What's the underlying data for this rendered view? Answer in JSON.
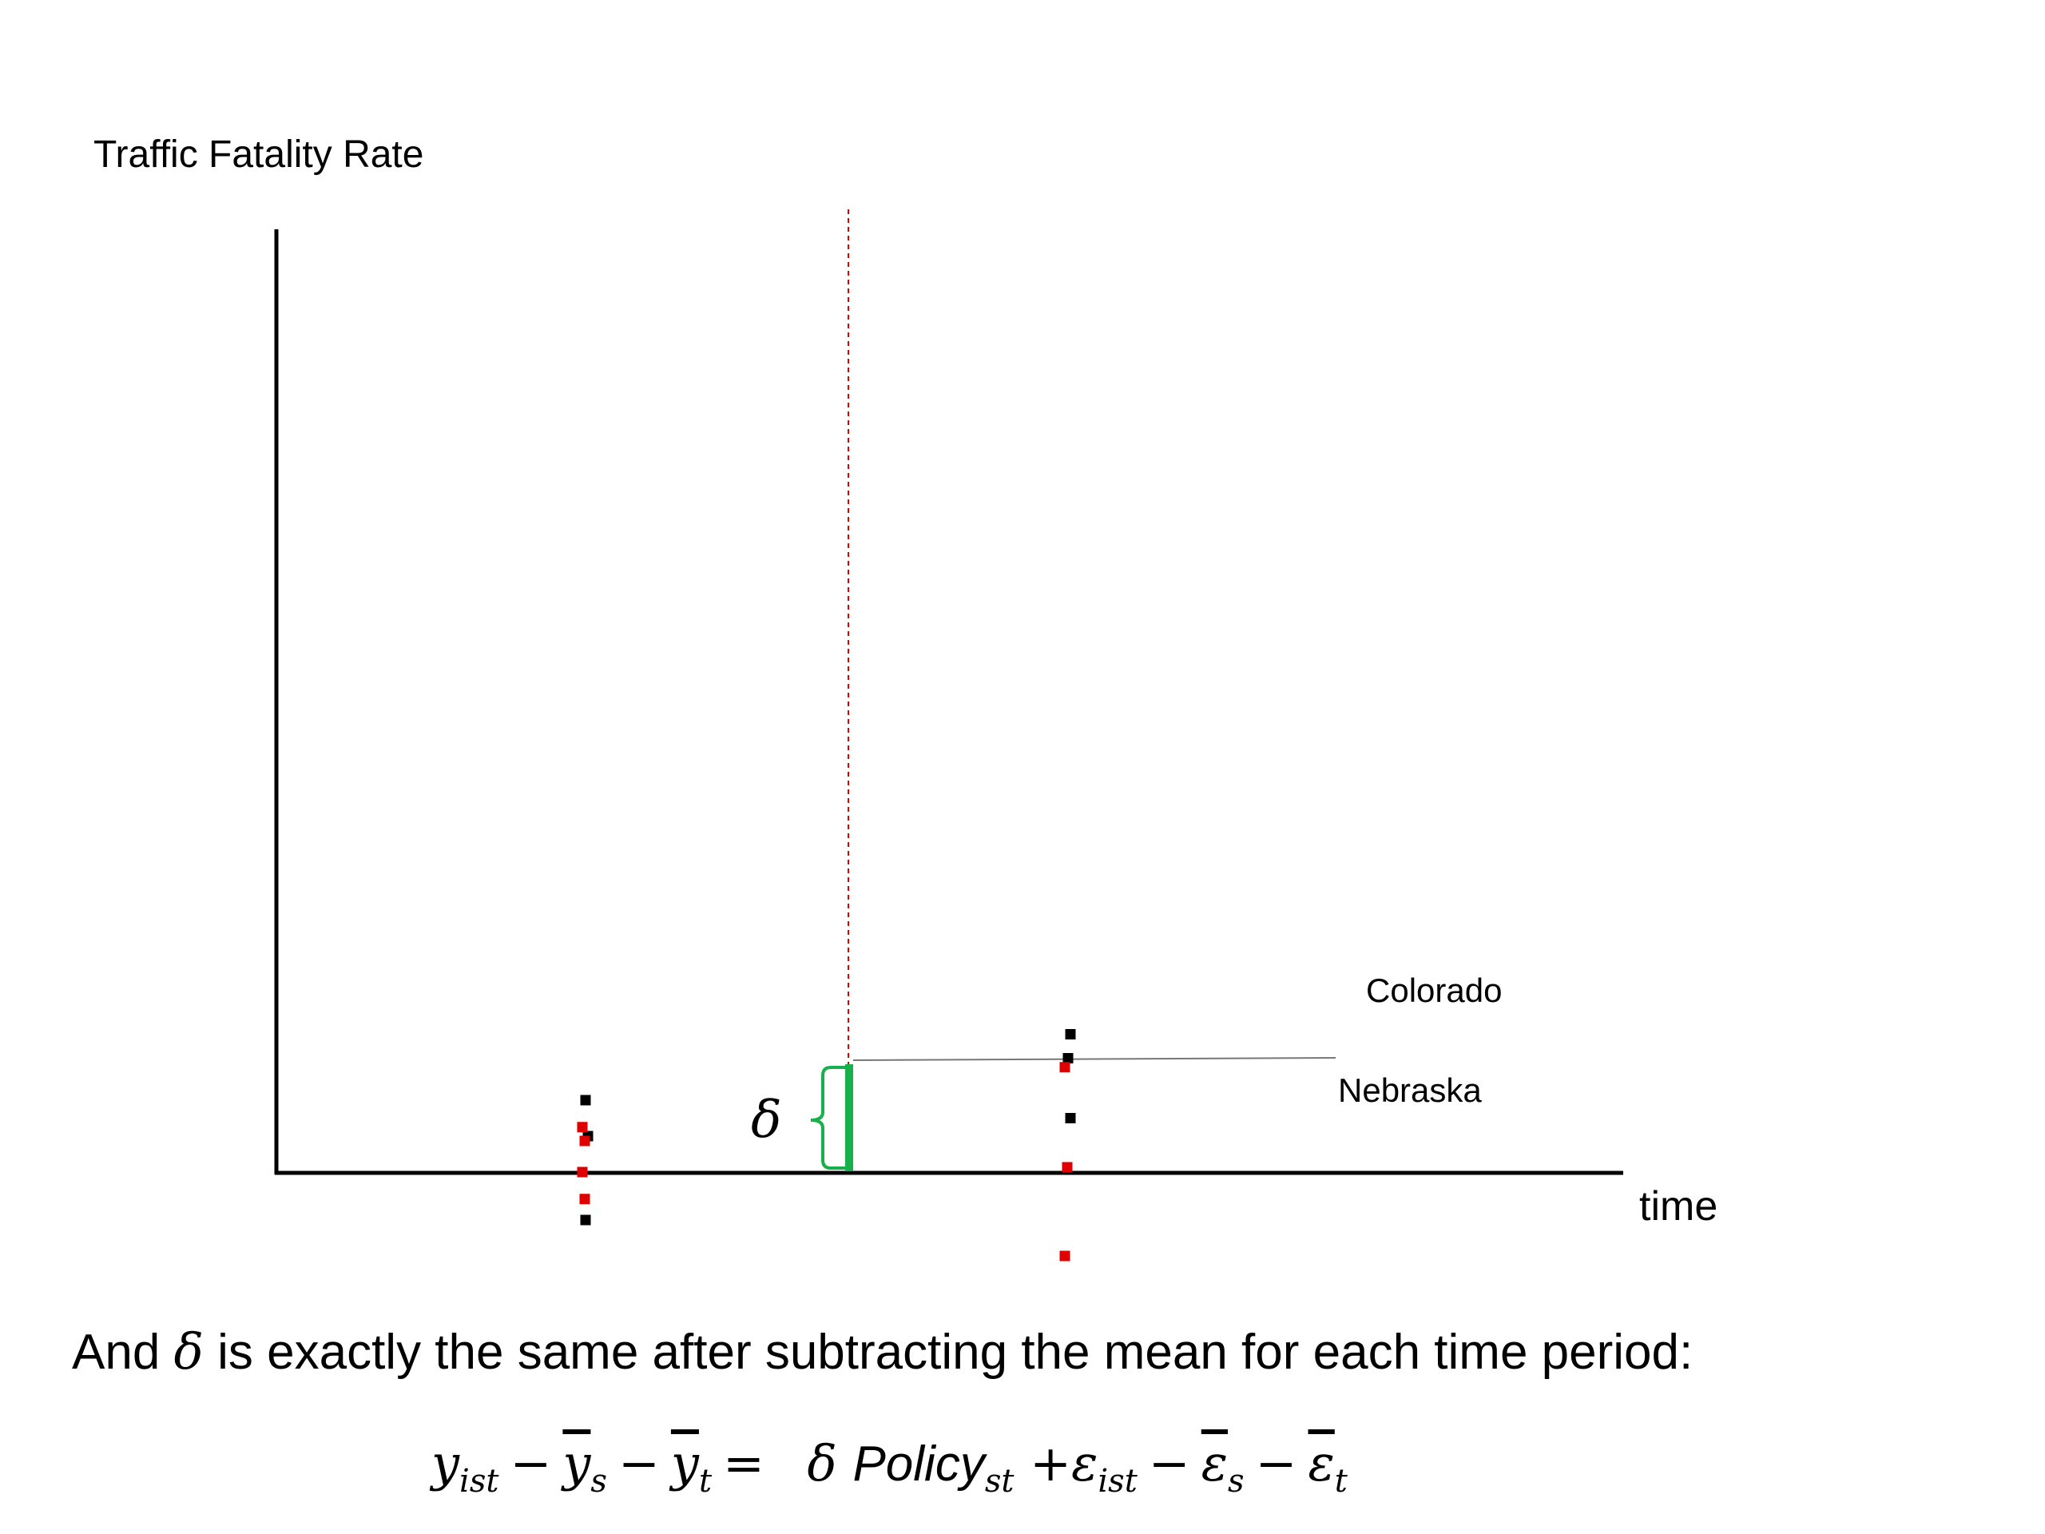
{
  "chart_data": {
    "type": "scatter",
    "ylabel": "Traffic Fatality Rate",
    "xlabel": "time",
    "series": [
      {
        "name": "Colorado",
        "color": "#000000",
        "points": [
          [
            1,
            1.2
          ],
          [
            1,
            0.6
          ],
          [
            1,
            -0.8
          ],
          [
            2,
            2.3
          ],
          [
            2,
            1.9
          ],
          [
            2,
            0.9
          ]
        ]
      },
      {
        "name": "Nebraska",
        "color": "#e00000",
        "points": [
          [
            1,
            0.75
          ],
          [
            1,
            0.52
          ],
          [
            1,
            0.0
          ],
          [
            1,
            -0.45
          ],
          [
            2,
            1.75
          ],
          [
            2,
            0.08
          ],
          [
            2,
            -1.4
          ]
        ]
      }
    ],
    "policy_time": 1.55,
    "colorado_line_level": 1.7,
    "delta_label": "δ"
  },
  "colors": {
    "axis": "#000000",
    "policy_line": "#e00000",
    "delta_bracket": "#18b04a",
    "level_line": "#777777"
  },
  "caption": {
    "pre": "And ",
    "symbol": "δ",
    "post": " is exactly the same after subtracting the mean for each time period:"
  },
  "equation": {
    "y": "y",
    "y_sub": "ist",
    "minus": "−",
    "ys": "y",
    "ys_sub": "s",
    "yt": "y",
    "yt_sub": "t",
    "equals": "=",
    "delta": "δ",
    "policy": "Policy",
    "policy_sub": "st",
    "plus": "+",
    "eps": "ε",
    "eps_sub": "ist",
    "eps_s": "ε",
    "eps_s_sub": "s",
    "eps_t": "ε",
    "eps_t_sub": "t"
  }
}
